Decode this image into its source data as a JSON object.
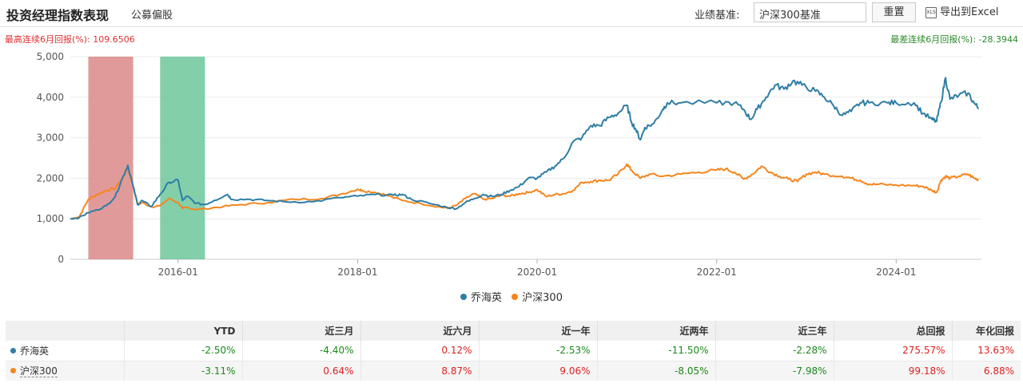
{
  "header": {
    "title": "投资经理指数表现",
    "subtitle": "公募偏股",
    "benchmark_label": "业绩基准:",
    "benchmark_value": "沪深300基准",
    "reset_label": "重置",
    "export_label": "导出到Excel",
    "export_icon": "xls-icon",
    "export_icon_text": "XLS"
  },
  "stats": {
    "max_label": "最高连续6月回报(%): 109.6506",
    "min_label": "最差连续6月回报(%): -28.3944"
  },
  "colors": {
    "series1": "#2f7ea6",
    "series2": "#f5861f",
    "max_band": "#dc8888",
    "min_band": "#6cc79b",
    "positive": "#e02020",
    "negative": "#1a8a1a"
  },
  "chart_data": {
    "type": "line",
    "title": "",
    "xlabel": "",
    "ylabel": "",
    "ylim": [
      0,
      5000
    ],
    "yticks": [
      0,
      1000,
      2000,
      3000,
      4000,
      5000
    ],
    "ytick_labels": [
      "0",
      "1,000",
      "2,000",
      "3,000",
      "4,000",
      "5,000"
    ],
    "xlim": [
      2014.8,
      2024.95
    ],
    "xticks": [
      2016.0,
      2018.0,
      2020.0,
      2022.0,
      2024.0
    ],
    "xtick_labels": [
      "2016-01",
      "2018-01",
      "2020-01",
      "2022-01",
      "2024-01"
    ],
    "highlight_max_period": [
      2015.0,
      2015.5
    ],
    "highlight_min_period": [
      2015.8,
      2016.3
    ],
    "legend_position": "bottom-center",
    "series": [
      {
        "name": "乔海英",
        "points": [
          [
            2014.8,
            1000
          ],
          [
            2014.9,
            1030
          ],
          [
            2015.0,
            1150
          ],
          [
            2015.1,
            1220
          ],
          [
            2015.2,
            1320
          ],
          [
            2015.3,
            1550
          ],
          [
            2015.38,
            2000
          ],
          [
            2015.44,
            2320
          ],
          [
            2015.5,
            1800
          ],
          [
            2015.55,
            1350
          ],
          [
            2015.6,
            1450
          ],
          [
            2015.7,
            1300
          ],
          [
            2015.8,
            1600
          ],
          [
            2015.9,
            1900
          ],
          [
            2016.0,
            1950
          ],
          [
            2016.05,
            1450
          ],
          [
            2016.1,
            1560
          ],
          [
            2016.2,
            1380
          ],
          [
            2016.3,
            1350
          ],
          [
            2016.4,
            1450
          ],
          [
            2016.55,
            1600
          ],
          [
            2016.6,
            1480
          ],
          [
            2016.8,
            1480
          ],
          [
            2017.0,
            1450
          ],
          [
            2017.2,
            1420
          ],
          [
            2017.5,
            1420
          ],
          [
            2017.8,
            1520
          ],
          [
            2018.0,
            1560
          ],
          [
            2018.2,
            1600
          ],
          [
            2018.4,
            1580
          ],
          [
            2018.5,
            1600
          ],
          [
            2018.6,
            1480
          ],
          [
            2018.8,
            1380
          ],
          [
            2019.0,
            1280
          ],
          [
            2019.1,
            1250
          ],
          [
            2019.2,
            1400
          ],
          [
            2019.3,
            1500
          ],
          [
            2019.4,
            1600
          ],
          [
            2019.5,
            1550
          ],
          [
            2019.6,
            1600
          ],
          [
            2019.7,
            1700
          ],
          [
            2019.8,
            1800
          ],
          [
            2019.9,
            2000
          ],
          [
            2020.0,
            2000
          ],
          [
            2020.1,
            2150
          ],
          [
            2020.2,
            2300
          ],
          [
            2020.3,
            2500
          ],
          [
            2020.4,
            2900
          ],
          [
            2020.5,
            3000
          ],
          [
            2020.6,
            3300
          ],
          [
            2020.7,
            3300
          ],
          [
            2020.8,
            3500
          ],
          [
            2020.9,
            3600
          ],
          [
            2021.0,
            3800
          ],
          [
            2021.05,
            3400
          ],
          [
            2021.1,
            3200
          ],
          [
            2021.15,
            2950
          ],
          [
            2021.2,
            3250
          ],
          [
            2021.3,
            3350
          ],
          [
            2021.4,
            3700
          ],
          [
            2021.45,
            3860
          ],
          [
            2021.6,
            3860
          ],
          [
            2022.0,
            3860
          ],
          [
            2022.2,
            3860
          ],
          [
            2022.3,
            3700
          ],
          [
            2022.38,
            3450
          ],
          [
            2022.45,
            3700
          ],
          [
            2022.55,
            4000
          ],
          [
            2022.65,
            4300
          ],
          [
            2022.75,
            4200
          ],
          [
            2022.85,
            4400
          ],
          [
            2022.95,
            4300
          ],
          [
            2023.1,
            4150
          ],
          [
            2023.2,
            4000
          ],
          [
            2023.3,
            3800
          ],
          [
            2023.4,
            3550
          ],
          [
            2023.5,
            3650
          ],
          [
            2023.6,
            3860
          ],
          [
            2023.7,
            3860
          ],
          [
            2023.9,
            3860
          ],
          [
            2024.0,
            3860
          ],
          [
            2024.2,
            3860
          ],
          [
            2024.3,
            3600
          ],
          [
            2024.4,
            3450
          ],
          [
            2024.45,
            3400
          ],
          [
            2024.5,
            3880
          ],
          [
            2024.55,
            4480
          ],
          [
            2024.6,
            3950
          ],
          [
            2024.7,
            4050
          ],
          [
            2024.8,
            4100
          ],
          [
            2024.87,
            3850
          ],
          [
            2024.92,
            3720
          ]
        ]
      },
      {
        "name": "沪深300",
        "points": [
          [
            2014.8,
            1000
          ],
          [
            2014.9,
            1050
          ],
          [
            2015.0,
            1480
          ],
          [
            2015.1,
            1600
          ],
          [
            2015.2,
            1700
          ],
          [
            2015.3,
            1750
          ],
          [
            2015.38,
            2000
          ],
          [
            2015.44,
            2250
          ],
          [
            2015.5,
            1800
          ],
          [
            2015.55,
            1350
          ],
          [
            2015.6,
            1400
          ],
          [
            2015.7,
            1300
          ],
          [
            2015.8,
            1320
          ],
          [
            2015.9,
            1500
          ],
          [
            2016.0,
            1400
          ],
          [
            2016.05,
            1250
          ],
          [
            2016.1,
            1280
          ],
          [
            2016.2,
            1230
          ],
          [
            2016.3,
            1250
          ],
          [
            2016.5,
            1300
          ],
          [
            2016.7,
            1350
          ],
          [
            2017.0,
            1400
          ],
          [
            2017.3,
            1480
          ],
          [
            2017.6,
            1500
          ],
          [
            2017.8,
            1600
          ],
          [
            2018.0,
            1730
          ],
          [
            2018.05,
            1700
          ],
          [
            2018.2,
            1650
          ],
          [
            2018.3,
            1600
          ],
          [
            2018.5,
            1450
          ],
          [
            2018.7,
            1380
          ],
          [
            2018.9,
            1300
          ],
          [
            2019.0,
            1260
          ],
          [
            2019.1,
            1330
          ],
          [
            2019.2,
            1500
          ],
          [
            2019.3,
            1620
          ],
          [
            2019.4,
            1480
          ],
          [
            2019.5,
            1500
          ],
          [
            2019.6,
            1580
          ],
          [
            2019.7,
            1560
          ],
          [
            2019.8,
            1620
          ],
          [
            2019.9,
            1650
          ],
          [
            2020.0,
            1720
          ],
          [
            2020.1,
            1550
          ],
          [
            2020.2,
            1600
          ],
          [
            2020.3,
            1620
          ],
          [
            2020.4,
            1700
          ],
          [
            2020.5,
            1900
          ],
          [
            2020.6,
            1920
          ],
          [
            2020.7,
            1950
          ],
          [
            2020.8,
            1950
          ],
          [
            2020.9,
            2100
          ],
          [
            2021.0,
            2350
          ],
          [
            2021.05,
            2200
          ],
          [
            2021.15,
            2000
          ],
          [
            2021.25,
            2100
          ],
          [
            2021.4,
            2050
          ],
          [
            2021.6,
            2100
          ],
          [
            2021.8,
            2150
          ],
          [
            2022.0,
            2200
          ],
          [
            2022.1,
            2230
          ],
          [
            2022.2,
            2150
          ],
          [
            2022.3,
            1980
          ],
          [
            2022.4,
            2100
          ],
          [
            2022.5,
            2300
          ],
          [
            2022.6,
            2150
          ],
          [
            2022.7,
            2050
          ],
          [
            2022.8,
            1980
          ],
          [
            2022.9,
            1920
          ],
          [
            2023.0,
            2100
          ],
          [
            2023.1,
            2150
          ],
          [
            2023.2,
            2100
          ],
          [
            2023.4,
            2050
          ],
          [
            2023.5,
            2000
          ],
          [
            2023.6,
            1950
          ],
          [
            2023.7,
            1850
          ],
          [
            2023.8,
            1850
          ],
          [
            2024.0,
            1830
          ],
          [
            2024.2,
            1820
          ],
          [
            2024.3,
            1800
          ],
          [
            2024.4,
            1700
          ],
          [
            2024.45,
            1650
          ],
          [
            2024.5,
            1950
          ],
          [
            2024.55,
            2050
          ],
          [
            2024.6,
            2000
          ],
          [
            2024.7,
            2050
          ],
          [
            2024.8,
            2100
          ],
          [
            2024.87,
            2000
          ],
          [
            2024.92,
            1960
          ]
        ]
      }
    ]
  },
  "table": {
    "headers": [
      "",
      "YTD",
      "近三月",
      "近六月",
      "近一年",
      "近两年",
      "近三年",
      "总回报",
      "年化回报"
    ],
    "rows": [
      {
        "name": "乔海英",
        "values": [
          "-2.50%",
          "-4.40%",
          "0.12%",
          "-2.53%",
          "-11.50%",
          "-2.28%",
          "275.57%",
          "13.63%"
        ]
      },
      {
        "name": "沪深300",
        "values": [
          "-3.11%",
          "0.64%",
          "8.87%",
          "9.06%",
          "-8.05%",
          "-7.98%",
          "99.18%",
          "6.88%"
        ]
      }
    ]
  }
}
